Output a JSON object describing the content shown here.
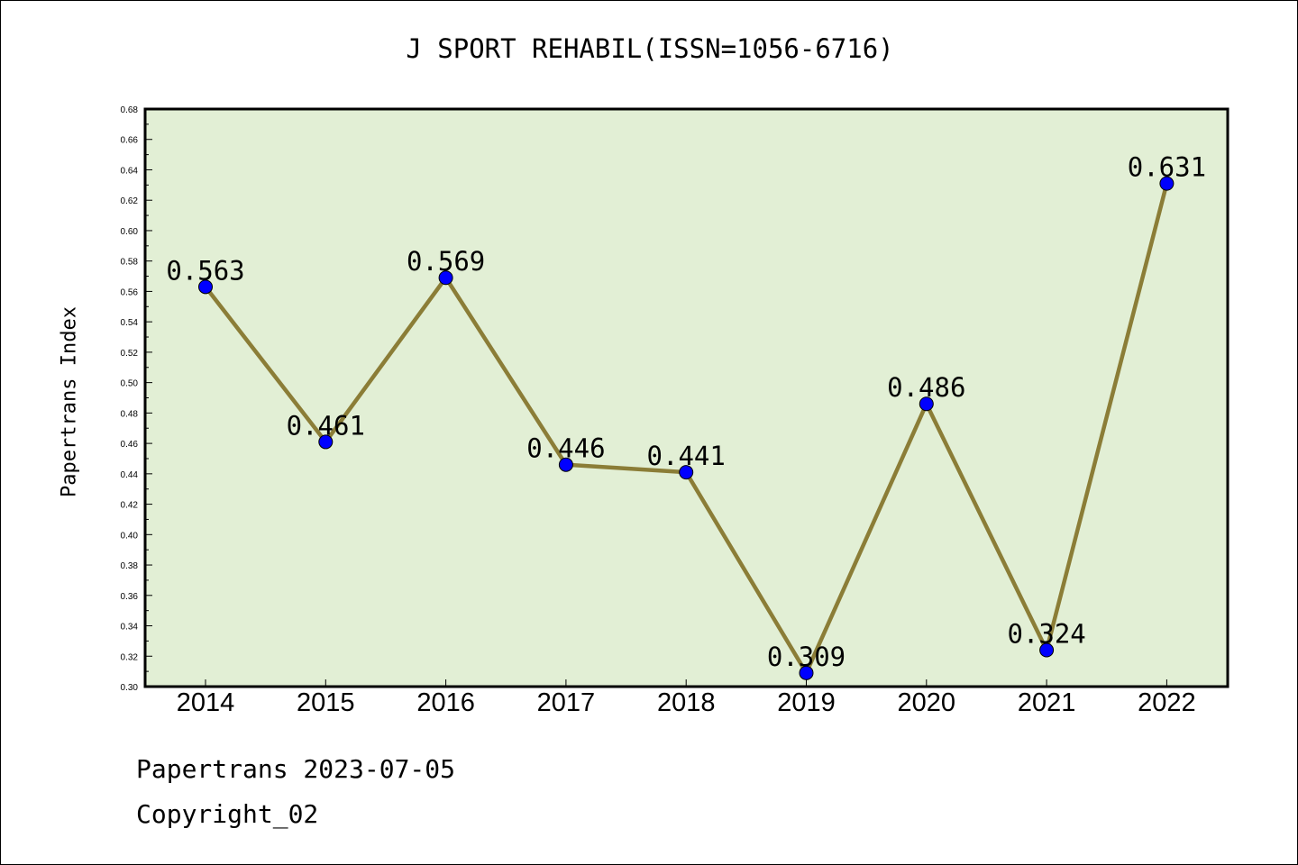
{
  "chart_data": {
    "type": "line",
    "title": "J SPORT REHABIL(ISSN=1056-6716)",
    "xlabel": "",
    "ylabel": "Papertrans Index",
    "categories": [
      "2014",
      "2015",
      "2016",
      "2017",
      "2018",
      "2019",
      "2020",
      "2021",
      "2022"
    ],
    "series": [
      {
        "values": [
          0.563,
          0.461,
          0.569,
          0.446,
          0.441,
          0.309,
          0.486,
          0.324,
          0.631
        ],
        "labels": [
          "0.563",
          "0.461",
          "0.569",
          "0.446",
          "0.441",
          "0.309",
          "0.486",
          "0.324",
          "0.631"
        ]
      }
    ],
    "ylim": [
      0.3,
      0.68
    ],
    "yticks": [
      "0.30",
      "0.32",
      "0.34",
      "0.36",
      "0.38",
      "0.40",
      "0.42",
      "0.44",
      "0.46",
      "0.48",
      "0.50",
      "0.52",
      "0.54",
      "0.56",
      "0.58",
      "0.60",
      "0.62",
      "0.64",
      "0.66",
      "0.68"
    ],
    "grid": false,
    "colors": {
      "plot_background": "#e2efd5",
      "line": "#8b7d37",
      "marker": "#0000ff"
    }
  },
  "footer": {
    "line1": "Papertrans 2023-07-05",
    "line2": "Copyright_02"
  }
}
